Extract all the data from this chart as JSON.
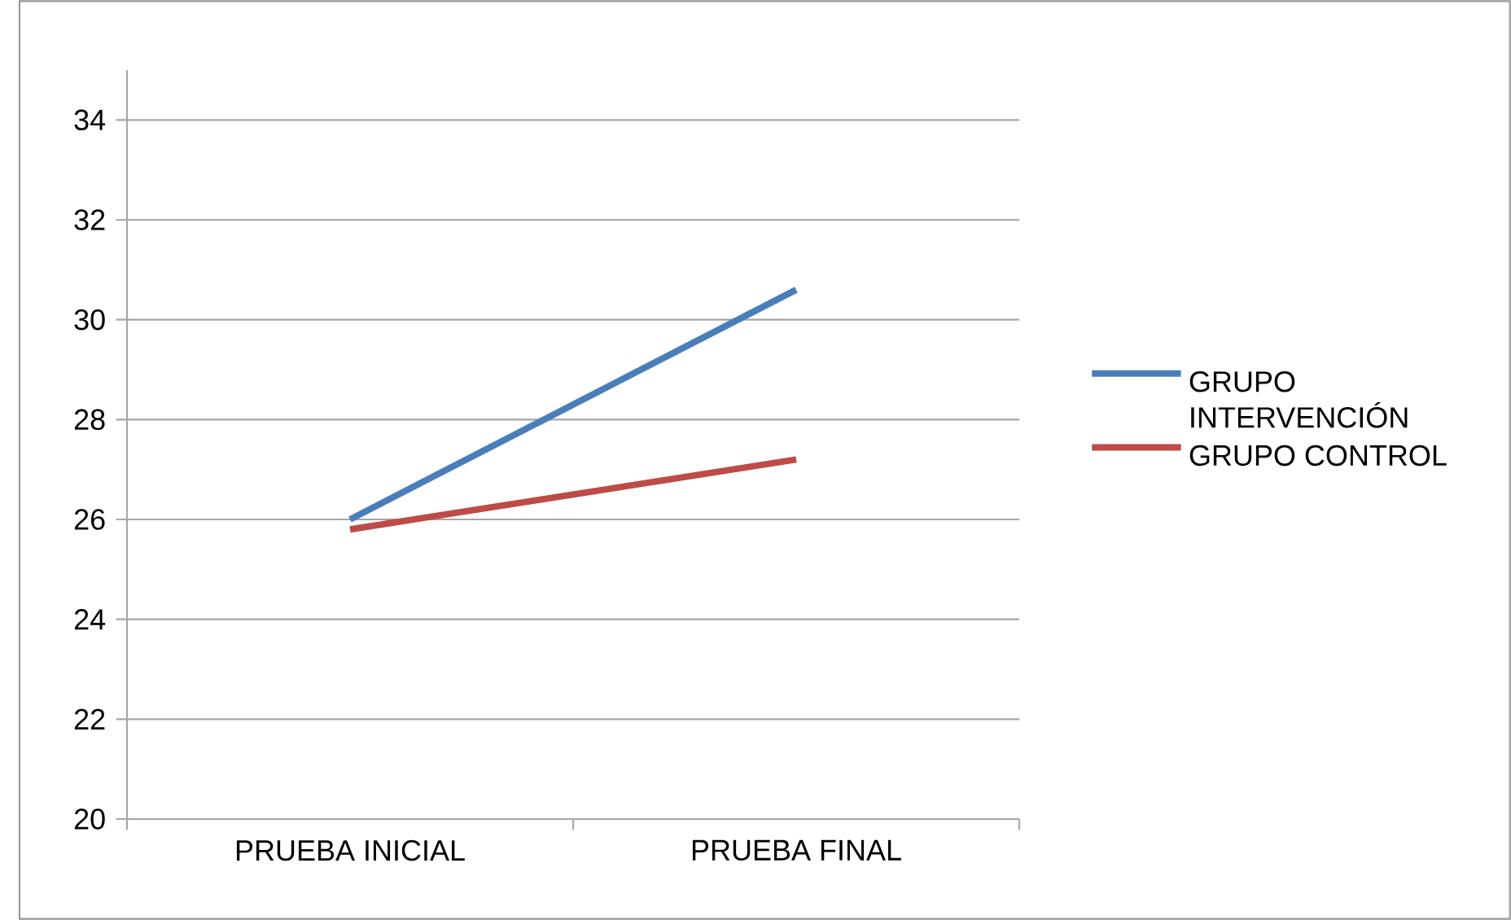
{
  "chart_data": {
    "type": "line",
    "categories": [
      "PRUEBA INICIAL",
      "PRUEBA FINAL"
    ],
    "series": [
      {
        "name": "GRUPO INTERVENCIÓN",
        "color": "#4a7ebb",
        "values": [
          26.0,
          30.6
        ]
      },
      {
        "name": "GRUPO CONTROL",
        "color": "#be4b48",
        "values": [
          25.8,
          27.2
        ]
      }
    ],
    "ylim": [
      20,
      35
    ],
    "yticks": [
      20,
      22,
      24,
      26,
      28,
      30,
      32,
      34
    ],
    "grid": "y",
    "legend": "right",
    "marker": "none",
    "line_style": "solid"
  }
}
